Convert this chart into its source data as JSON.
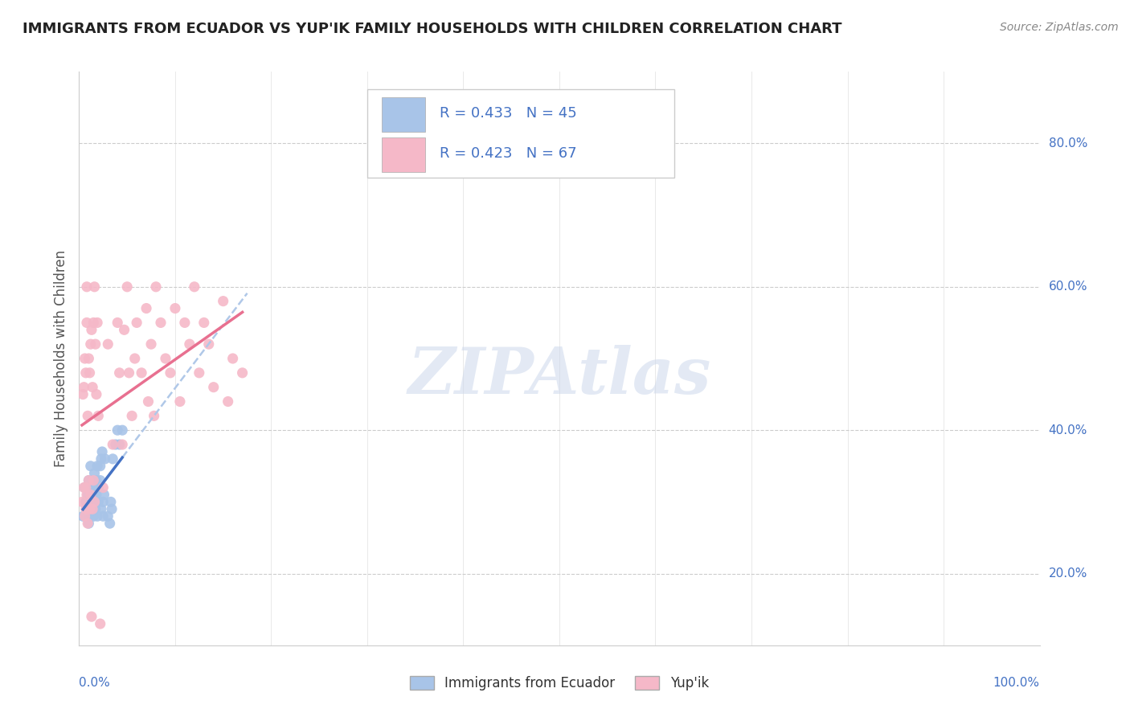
{
  "title": "IMMIGRANTS FROM ECUADOR VS YUP'IK FAMILY HOUSEHOLDS WITH CHILDREN CORRELATION CHART",
  "source": "Source: ZipAtlas.com",
  "ylabel": "Family Households with Children",
  "legend_r1": "R = 0.433",
  "legend_n1": "N = 45",
  "legend_r2": "R = 0.423",
  "legend_n2": "N = 67",
  "legend_label1": "Immigrants from Ecuador",
  "legend_label2": "Yup'ik",
  "watermark": "ZIPAtlas",
  "blue_color": "#a8c4e8",
  "pink_color": "#f5b8c8",
  "blue_line_color": "#4472c4",
  "pink_line_color": "#e87090",
  "dash_line_color": "#b0c8e8",
  "title_color": "#222222",
  "axis_label_color": "#4472c4",
  "legend_r_color": "#4472c4",
  "background_color": "#ffffff",
  "xlim": [
    0.0,
    1.0
  ],
  "ylim": [
    0.1,
    0.9
  ],
  "ytick_vals": [
    0.2,
    0.4,
    0.6,
    0.8
  ],
  "ytick_labels": [
    "20.0%",
    "40.0%",
    "60.0%",
    "80.0%"
  ],
  "scatter_blue": [
    [
      0.004,
      0.28
    ],
    [
      0.006,
      0.32
    ],
    [
      0.007,
      0.3
    ],
    [
      0.008,
      0.29
    ],
    [
      0.009,
      0.31
    ],
    [
      0.01,
      0.33
    ],
    [
      0.01,
      0.27
    ],
    [
      0.011,
      0.28
    ],
    [
      0.011,
      0.3
    ],
    [
      0.012,
      0.32
    ],
    [
      0.012,
      0.35
    ],
    [
      0.013,
      0.31
    ],
    [
      0.013,
      0.29
    ],
    [
      0.014,
      0.3
    ],
    [
      0.014,
      0.33
    ],
    [
      0.015,
      0.28
    ],
    [
      0.015,
      0.31
    ],
    [
      0.016,
      0.34
    ],
    [
      0.016,
      0.3
    ],
    [
      0.017,
      0.32
    ],
    [
      0.017,
      0.29
    ],
    [
      0.018,
      0.33
    ],
    [
      0.018,
      0.31
    ],
    [
      0.019,
      0.35
    ],
    [
      0.019,
      0.28
    ],
    [
      0.02,
      0.32
    ],
    [
      0.02,
      0.3
    ],
    [
      0.022,
      0.33
    ],
    [
      0.022,
      0.35
    ],
    [
      0.023,
      0.36
    ],
    [
      0.023,
      0.29
    ],
    [
      0.024,
      0.37
    ],
    [
      0.025,
      0.3
    ],
    [
      0.025,
      0.28
    ],
    [
      0.026,
      0.31
    ],
    [
      0.027,
      0.36
    ],
    [
      0.03,
      0.28
    ],
    [
      0.032,
      0.27
    ],
    [
      0.033,
      0.3
    ],
    [
      0.034,
      0.29
    ],
    [
      0.035,
      0.36
    ],
    [
      0.038,
      0.38
    ],
    [
      0.04,
      0.4
    ],
    [
      0.042,
      0.38
    ],
    [
      0.045,
      0.4
    ]
  ],
  "scatter_pink": [
    [
      0.003,
      0.3
    ],
    [
      0.004,
      0.45
    ],
    [
      0.005,
      0.32
    ],
    [
      0.005,
      0.46
    ],
    [
      0.006,
      0.5
    ],
    [
      0.006,
      0.28
    ],
    [
      0.007,
      0.48
    ],
    [
      0.007,
      0.32
    ],
    [
      0.007,
      0.29
    ],
    [
      0.008,
      0.55
    ],
    [
      0.008,
      0.31
    ],
    [
      0.008,
      0.6
    ],
    [
      0.009,
      0.27
    ],
    [
      0.009,
      0.42
    ],
    [
      0.01,
      0.33
    ],
    [
      0.01,
      0.5
    ],
    [
      0.011,
      0.29
    ],
    [
      0.011,
      0.48
    ],
    [
      0.012,
      0.52
    ],
    [
      0.012,
      0.31
    ],
    [
      0.013,
      0.54
    ],
    [
      0.013,
      0.14
    ],
    [
      0.014,
      0.46
    ],
    [
      0.014,
      0.29
    ],
    [
      0.015,
      0.55
    ],
    [
      0.015,
      0.33
    ],
    [
      0.016,
      0.6
    ],
    [
      0.016,
      0.3
    ],
    [
      0.017,
      0.52
    ],
    [
      0.018,
      0.45
    ],
    [
      0.019,
      0.55
    ],
    [
      0.02,
      0.42
    ],
    [
      0.022,
      0.13
    ],
    [
      0.025,
      0.32
    ],
    [
      0.03,
      0.52
    ],
    [
      0.035,
      0.38
    ],
    [
      0.04,
      0.55
    ],
    [
      0.042,
      0.48
    ],
    [
      0.045,
      0.38
    ],
    [
      0.047,
      0.54
    ],
    [
      0.05,
      0.6
    ],
    [
      0.052,
      0.48
    ],
    [
      0.055,
      0.42
    ],
    [
      0.058,
      0.5
    ],
    [
      0.06,
      0.55
    ],
    [
      0.065,
      0.48
    ],
    [
      0.07,
      0.57
    ],
    [
      0.072,
      0.44
    ],
    [
      0.075,
      0.52
    ],
    [
      0.078,
      0.42
    ],
    [
      0.08,
      0.6
    ],
    [
      0.085,
      0.55
    ],
    [
      0.09,
      0.5
    ],
    [
      0.095,
      0.48
    ],
    [
      0.1,
      0.57
    ],
    [
      0.105,
      0.44
    ],
    [
      0.11,
      0.55
    ],
    [
      0.115,
      0.52
    ],
    [
      0.12,
      0.6
    ],
    [
      0.125,
      0.48
    ],
    [
      0.13,
      0.55
    ],
    [
      0.135,
      0.52
    ],
    [
      0.14,
      0.46
    ],
    [
      0.15,
      0.58
    ],
    [
      0.155,
      0.44
    ],
    [
      0.16,
      0.5
    ],
    [
      0.17,
      0.48
    ]
  ]
}
